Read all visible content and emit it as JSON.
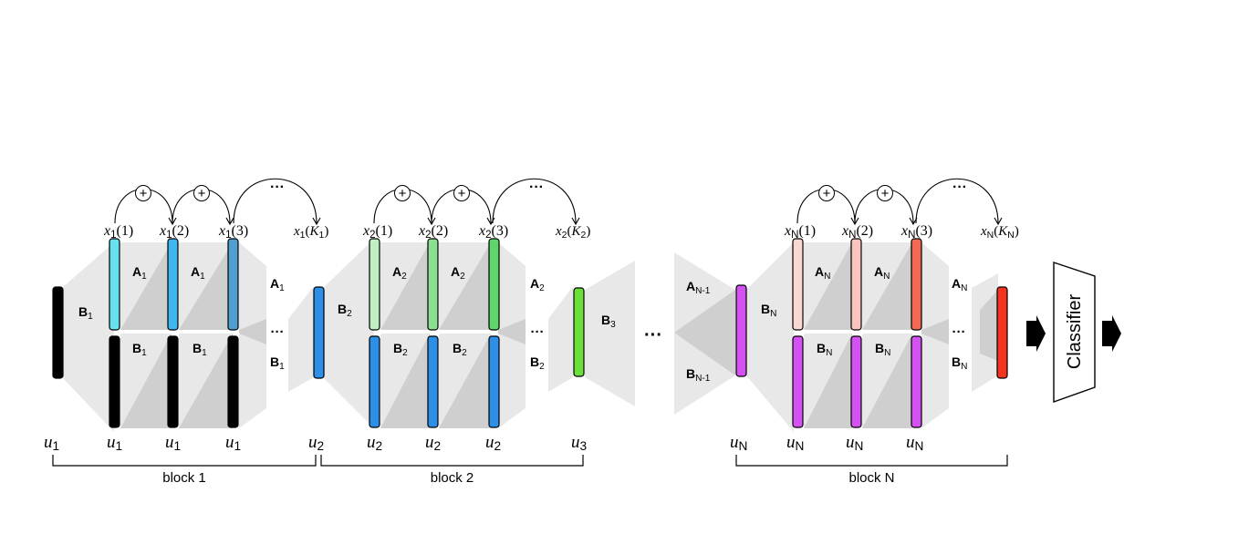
{
  "colors": {
    "background": "#ffffff",
    "shade_light": "#e8e8e8",
    "shade_dark": "#cfcfcf",
    "black_bar": "#000000",
    "blue_u": "#2d8fe6",
    "cyan_1": "#67e1ef",
    "cyan_2": "#3fb6f0",
    "cyan_3": "#4f9fd0",
    "green_1": "#bfefc2",
    "green_2": "#8cdf91",
    "green_3": "#5fd66a",
    "green_u3": "#6be03a",
    "pink_1": "#f9d8d4",
    "pink_2": "#f9c4be",
    "pink_3": "#f26a55",
    "red_out": "#f3341f",
    "purple": "#d452f1"
  },
  "labels": {
    "A": "A",
    "B": "B",
    "sub_1": "1",
    "sub_2": "2",
    "sub_3": "3",
    "sub_N": "N",
    "sub_Nm1": "N-1",
    "ellipsis": "···",
    "dots_mid": "···",
    "plus": "+",
    "x": "x",
    "u": "u",
    "idx_1": "(1)",
    "idx_2": "(2)",
    "idx_3": "(3)",
    "K": "K",
    "open_paren": "(",
    "close_paren": ")"
  },
  "blocks": {
    "block1": "block 1",
    "block2": "block 2",
    "blockN": "block N"
  },
  "classifier": "Classifier"
}
